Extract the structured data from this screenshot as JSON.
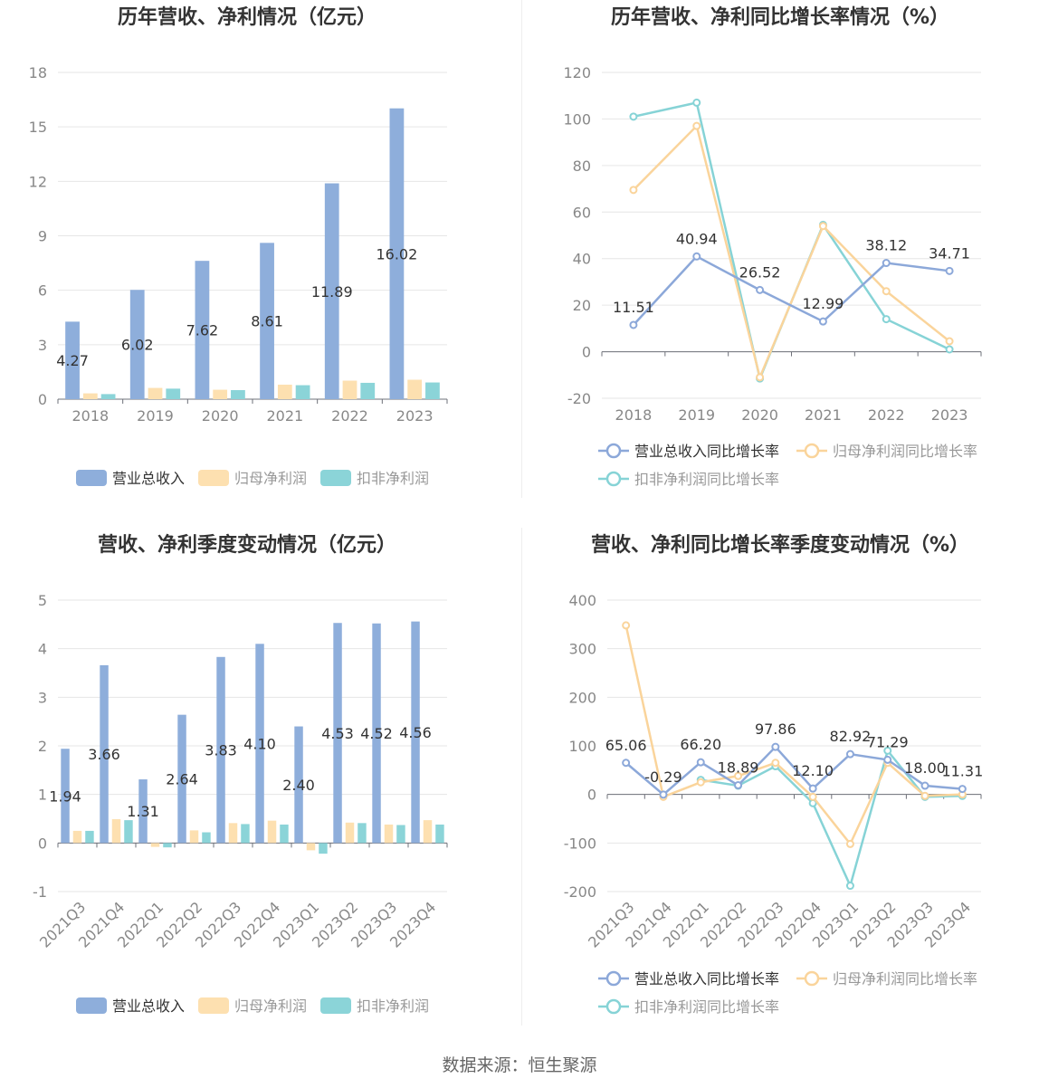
{
  "source": "数据来源：恒生聚源",
  "colors": {
    "revenue": "#8eaedb",
    "net": "#fde0b0",
    "deducted": "#8bd4d8",
    "revenue_line": "#8ca8d9",
    "net_line": "#fad49b",
    "deducted_line": "#86d3d6"
  },
  "chart_data": [
    {
      "type": "bar",
      "title": "历年营收、净利情况（亿元）",
      "categories": [
        "2018",
        "2019",
        "2020",
        "2021",
        "2022",
        "2023"
      ],
      "ylim": [
        0,
        18
      ],
      "yticks": [
        "0",
        "3",
        "6",
        "9",
        "12",
        "15",
        "18"
      ],
      "grid": true,
      "legend_position": "bottom",
      "series": [
        {
          "name": "营业总收入",
          "values": [
            4.27,
            6.02,
            7.62,
            8.61,
            11.89,
            16.02
          ],
          "labels": [
            "4.27",
            "6.02",
            "7.62",
            "8.61",
            "11.89",
            "16.02"
          ]
        },
        {
          "name": "归母净利润",
          "values": [
            0.32,
            0.62,
            0.52,
            0.8,
            1.02,
            1.07
          ]
        },
        {
          "name": "扣非净利润",
          "values": [
            0.28,
            0.58,
            0.5,
            0.77,
            0.9,
            0.92
          ]
        }
      ]
    },
    {
      "type": "line",
      "title": "历年营收、净利同比增长率情况（%）",
      "categories": [
        "2018",
        "2019",
        "2020",
        "2021",
        "2022",
        "2023"
      ],
      "ylim": [
        -20,
        120
      ],
      "yticks": [
        "-20",
        "0",
        "20",
        "40",
        "60",
        "80",
        "100",
        "120"
      ],
      "grid": true,
      "legend_position": "bottom",
      "series": [
        {
          "name": "营业总收入同比增长率",
          "values": [
            11.51,
            40.94,
            26.52,
            12.99,
            38.12,
            34.71
          ],
          "labels": [
            "11.51",
            "40.94",
            "26.52",
            "12.99",
            "38.12",
            "34.71"
          ]
        },
        {
          "name": "归母净利润同比增长率",
          "values": [
            69.5,
            97.0,
            -11.0,
            54.0,
            26.0,
            4.5
          ]
        },
        {
          "name": "扣非净利润同比增长率",
          "values": [
            101.0,
            107.0,
            -11.5,
            54.5,
            14.0,
            1.0
          ]
        }
      ]
    },
    {
      "type": "bar",
      "title": "营收、净利季度变动情况（亿元）",
      "categories": [
        "2021Q3",
        "2021Q4",
        "2022Q1",
        "2022Q2",
        "2022Q3",
        "2022Q4",
        "2023Q1",
        "2023Q2",
        "2023Q3",
        "2023Q4"
      ],
      "ylim": [
        -1,
        5
      ],
      "yticks": [
        "-1",
        "0",
        "1",
        "2",
        "3",
        "4",
        "5"
      ],
      "grid": true,
      "legend_position": "bottom",
      "series": [
        {
          "name": "营业总收入",
          "values": [
            1.94,
            3.66,
            1.31,
            2.64,
            3.83,
            4.1,
            2.4,
            4.53,
            4.52,
            4.56
          ],
          "labels": [
            "1.94",
            "3.66",
            "1.31",
            "2.64",
            "3.83",
            "4.10",
            "2.40",
            "4.53",
            "4.52",
            "4.56"
          ]
        },
        {
          "name": "归母净利润",
          "values": [
            0.25,
            0.49,
            -0.08,
            0.26,
            0.41,
            0.46,
            -0.15,
            0.42,
            0.38,
            0.47
          ]
        },
        {
          "name": "扣非净利润",
          "values": [
            0.25,
            0.47,
            -0.09,
            0.22,
            0.39,
            0.38,
            -0.22,
            0.41,
            0.37,
            0.38
          ]
        }
      ]
    },
    {
      "type": "line",
      "title": "营收、净利同比增长率季度变动情况（%）",
      "categories": [
        "2021Q3",
        "2021Q4",
        "2022Q1",
        "2022Q2",
        "2022Q3",
        "2022Q4",
        "2023Q1",
        "2023Q2",
        "2023Q3",
        "2023Q4"
      ],
      "ylim": [
        -200,
        400
      ],
      "yticks": [
        "-200",
        "-100",
        "0",
        "100",
        "200",
        "300",
        "400"
      ],
      "grid": true,
      "legend_position": "bottom",
      "series": [
        {
          "name": "营业总收入同比增长率",
          "values": [
            65.06,
            -0.29,
            66.2,
            18.89,
            97.86,
            12.1,
            82.92,
            71.29,
            18.0,
            11.31
          ],
          "labels": [
            "65.06",
            "-0.29",
            "66.20",
            "18.89",
            "97.86",
            "12.10",
            "82.92",
            "71.29",
            "18.00",
            "11.31"
          ]
        },
        {
          "name": "归母净利润同比增长率",
          "values": [
            348,
            -5,
            25,
            38,
            65,
            -5,
            -102,
            65,
            -3,
            0
          ]
        },
        {
          "name": "扣非净利润同比增长率",
          "values": [
            null,
            null,
            30,
            18,
            58,
            -18,
            -188,
            90,
            -5,
            -3
          ]
        }
      ]
    }
  ]
}
